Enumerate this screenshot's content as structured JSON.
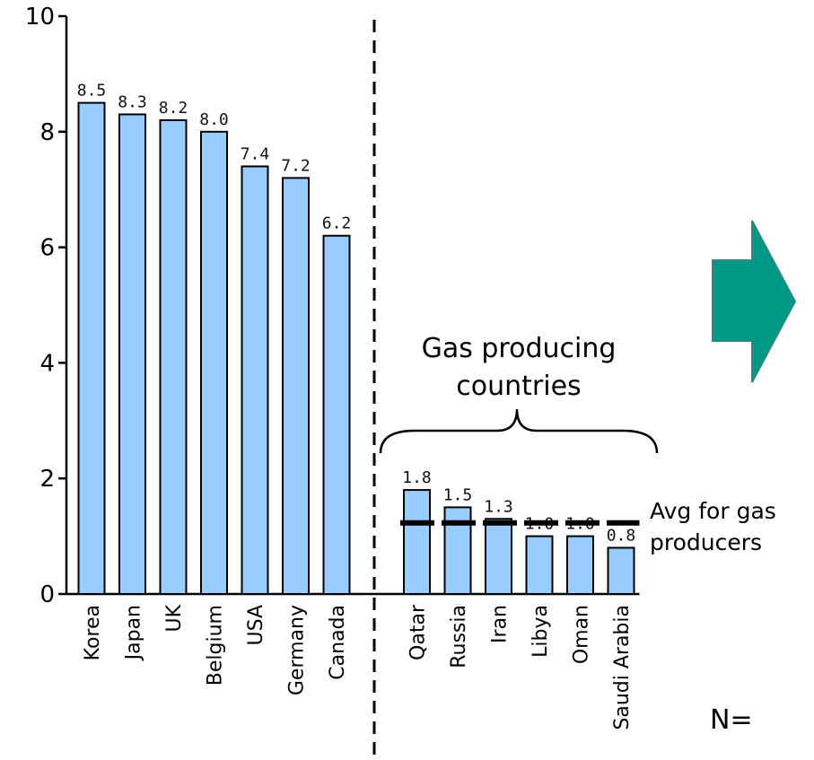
{
  "chart_data": {
    "type": "bar",
    "categories": [
      "Korea",
      "Japan",
      "UK",
      "Belgium",
      "USA",
      "Germany",
      "Canada",
      "Qatar",
      "Russia",
      "Iran",
      "Libya",
      "Oman",
      "Saudi Arabia"
    ],
    "values": [
      8.5,
      8.3,
      8.2,
      8.0,
      7.4,
      7.2,
      6.2,
      1.8,
      1.5,
      1.3,
      1.0,
      1.0,
      0.8
    ],
    "value_labels": [
      "8.5",
      "8.3",
      "8.2",
      "8.0",
      "7.4",
      "7.2",
      "6.2",
      "1.8",
      "1.5",
      "1.3",
      "1.0",
      "1.0",
      "0.8"
    ],
    "ylim": [
      0,
      10
    ],
    "yticks": [
      0,
      2,
      4,
      6,
      8,
      10
    ],
    "ytick_labels": [
      "0",
      "2",
      "4",
      "6",
      "8",
      "10"
    ],
    "grid": false,
    "bar_color": "#99ccff",
    "bar_edge_color": "#000000",
    "gas_producers_start_index": 7,
    "group_label": [
      "Gas producing",
      "countries"
    ],
    "average_line": {
      "value": 1.23,
      "label": [
        "Avg for gas",
        "producers"
      ],
      "color": "#000000"
    }
  },
  "arrow": {
    "color": "#009988",
    "icon": "right-arrow-icon"
  },
  "footer": {
    "n_label": "N="
  }
}
